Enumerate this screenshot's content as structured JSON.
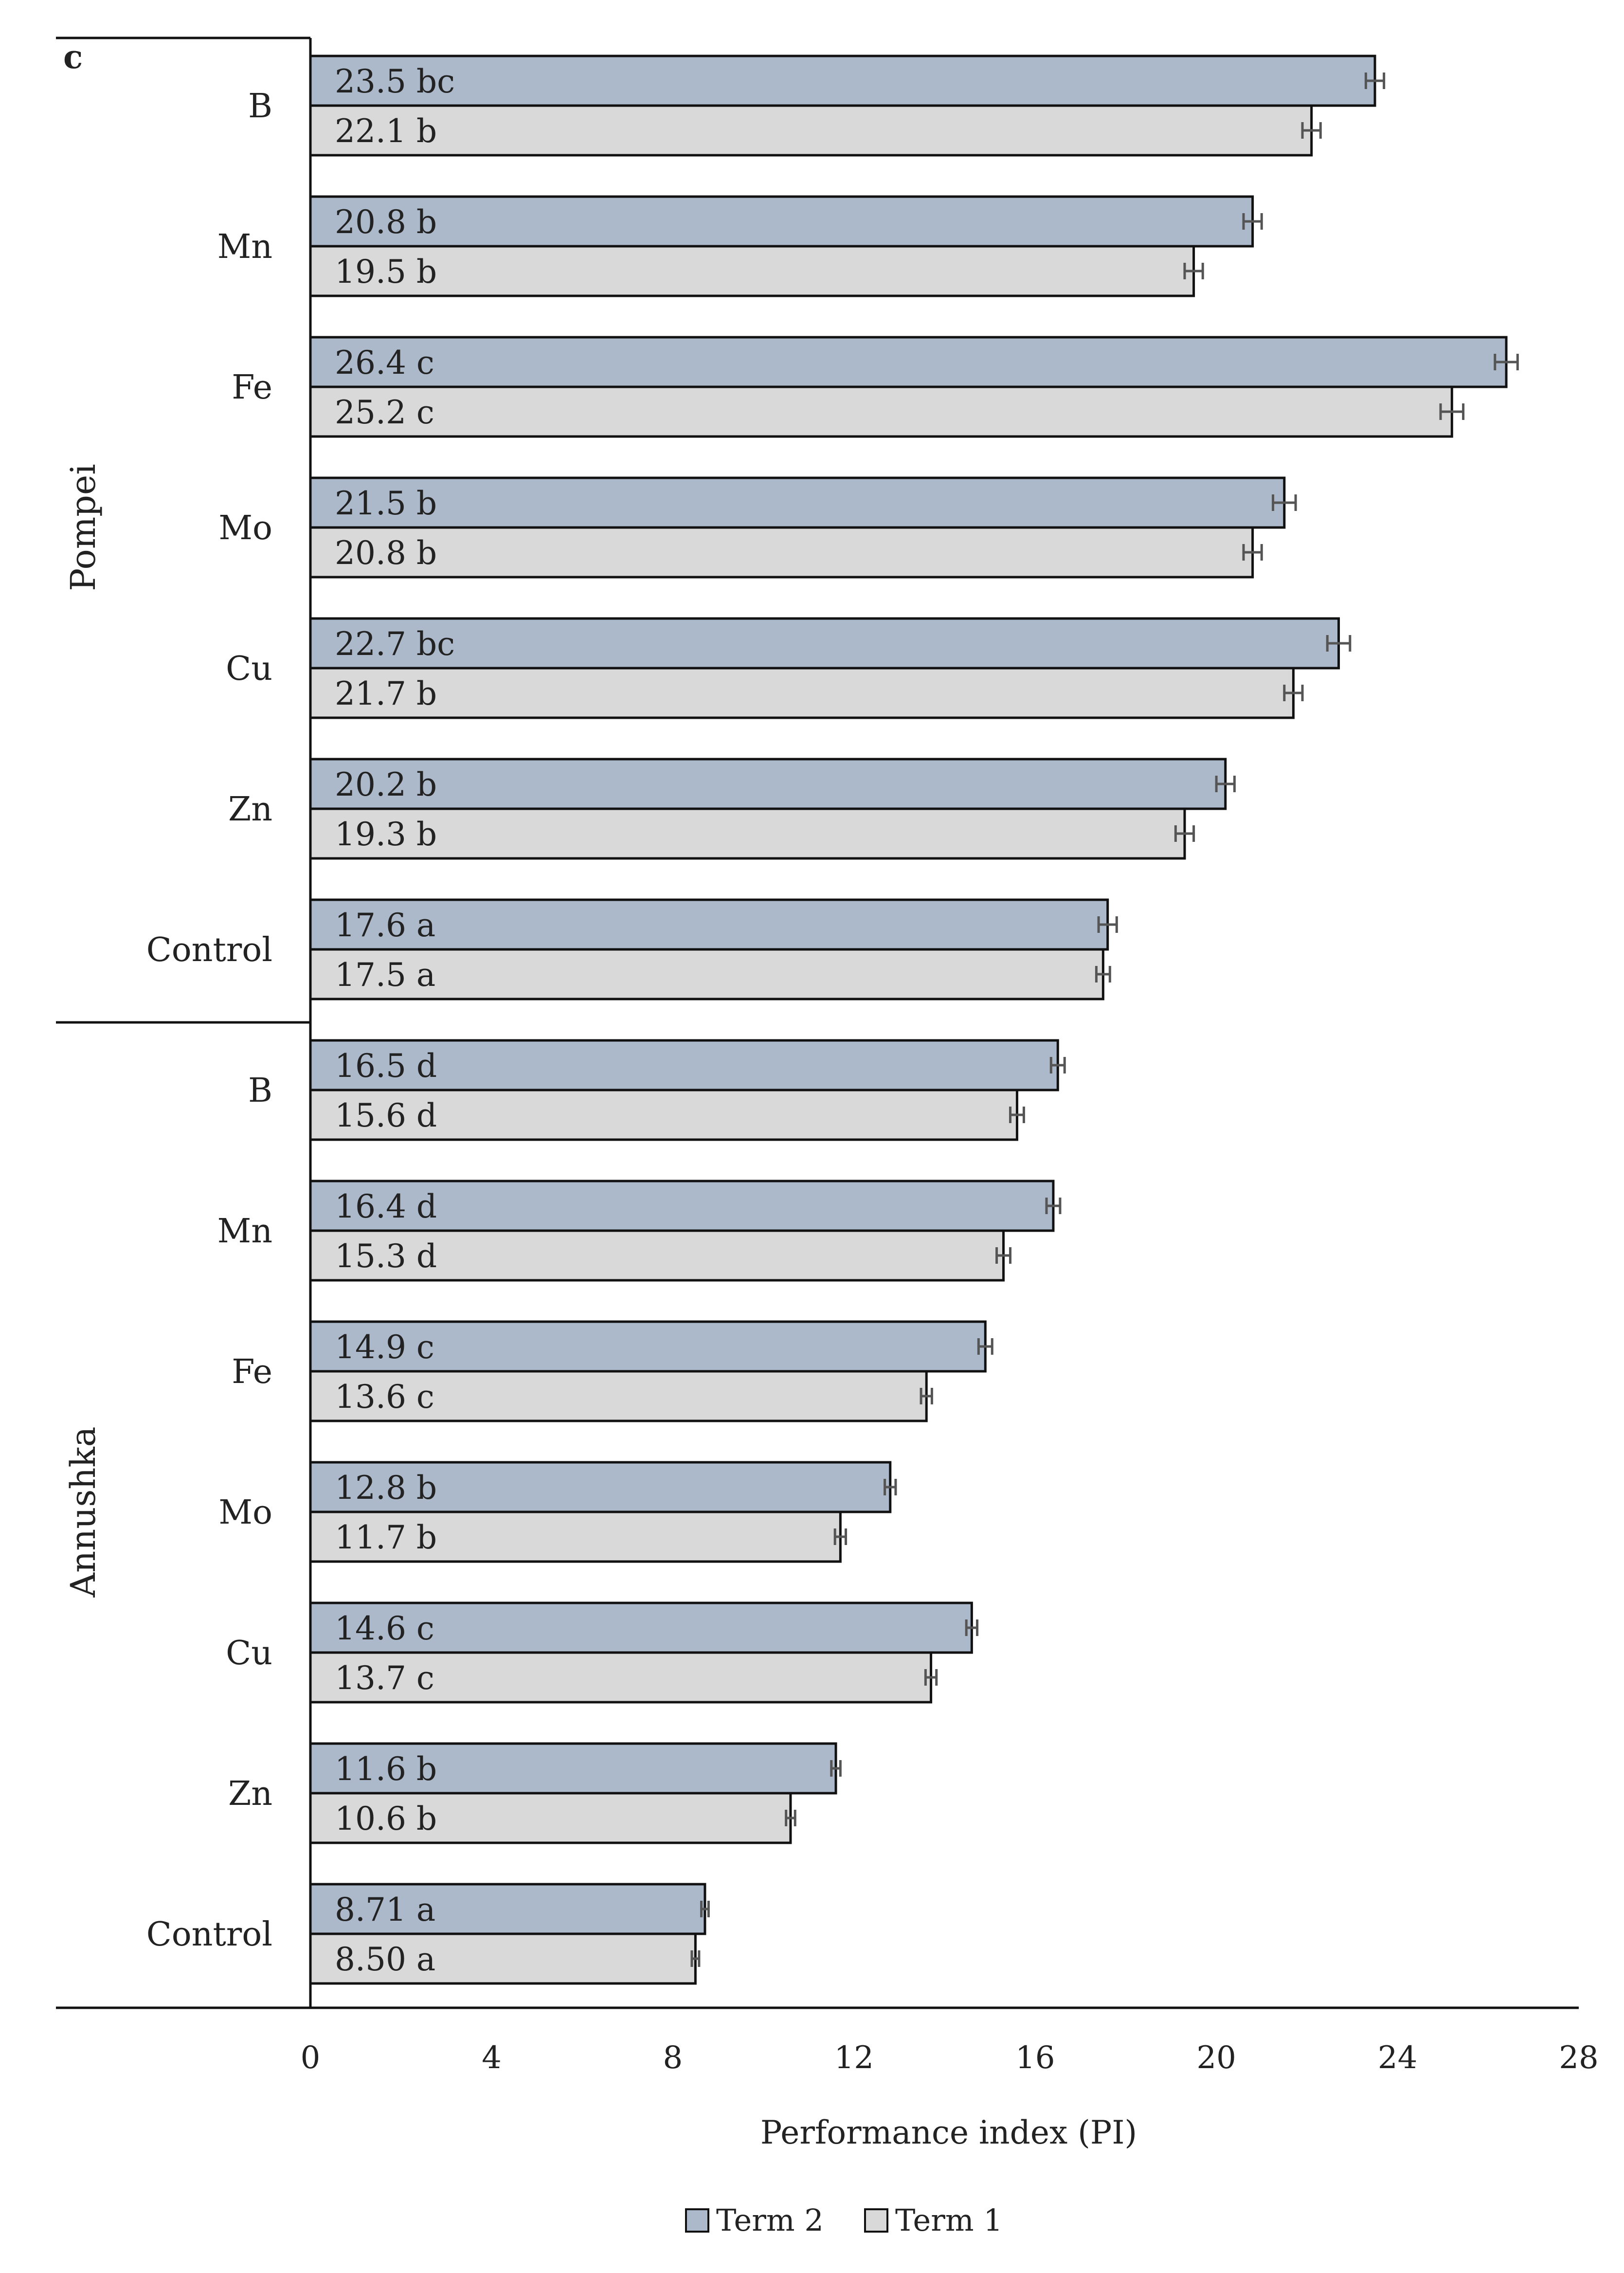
{
  "chart_data": {
    "type": "bar",
    "orientation": "horizontal",
    "panel_label": "c",
    "xlabel": "Performance index (PI)",
    "xlim": [
      0,
      28
    ],
    "xticks": [
      0,
      4,
      8,
      12,
      16,
      20,
      24,
      28
    ],
    "legend": [
      "Term 2",
      "Term 1"
    ],
    "colors": {
      "term2": "#acb9ca",
      "term1": "#d9d9d9",
      "edge": "#111111",
      "error": "#555555"
    },
    "groups": [
      {
        "name": "Pompei",
        "rows": [
          {
            "label": "B",
            "term2": 23.5,
            "term2_letter": "bc",
            "term2_text": "23.5 bc",
            "term1": 22.1,
            "term1_letter": "b",
            "term1_text": "22.1 b",
            "term2_err": 0.2,
            "term1_err": 0.2
          },
          {
            "label": "Mn",
            "term2": 20.8,
            "term2_letter": "b",
            "term2_text": "20.8 b",
            "term1": 19.5,
            "term1_letter": "b",
            "term1_text": "19.5 b",
            "term2_err": 0.2,
            "term1_err": 0.2
          },
          {
            "label": "Fe",
            "term2": 26.4,
            "term2_letter": "c",
            "term2_text": "26.4 c",
            "term1": 25.2,
            "term1_letter": "c",
            "term1_text": "25.2 c",
            "term2_err": 0.25,
            "term1_err": 0.25
          },
          {
            "label": "Mo",
            "term2": 21.5,
            "term2_letter": "b",
            "term2_text": "21.5 b",
            "term1": 20.8,
            "term1_letter": "b",
            "term1_text": "20.8 b",
            "term2_err": 0.25,
            "term1_err": 0.2
          },
          {
            "label": "Cu",
            "term2": 22.7,
            "term2_letter": "bc",
            "term2_text": "22.7 bc",
            "term1": 21.7,
            "term1_letter": "b",
            "term1_text": "21.7 b",
            "term2_err": 0.25,
            "term1_err": 0.2
          },
          {
            "label": "Zn",
            "term2": 20.2,
            "term2_letter": "b",
            "term2_text": "20.2 b",
            "term1": 19.3,
            "term1_letter": "b",
            "term1_text": "19.3 b",
            "term2_err": 0.2,
            "term1_err": 0.2
          },
          {
            "label": "Control",
            "term2": 17.6,
            "term2_letter": "a",
            "term2_text": "17.6 a",
            "term1": 17.5,
            "term1_letter": "a",
            "term1_text": "17.5 a",
            "term2_err": 0.2,
            "term1_err": 0.15
          }
        ]
      },
      {
        "name": "Annushka",
        "rows": [
          {
            "label": "B",
            "term2": 16.5,
            "term2_letter": "d",
            "term2_text": "16.5 d",
            "term1": 15.6,
            "term1_letter": "d",
            "term1_text": "15.6 d",
            "term2_err": 0.15,
            "term1_err": 0.15
          },
          {
            "label": "Mn",
            "term2": 16.4,
            "term2_letter": "d",
            "term2_text": "16.4 d",
            "term1": 15.3,
            "term1_letter": "d",
            "term1_text": "15.3 d",
            "term2_err": 0.15,
            "term1_err": 0.15
          },
          {
            "label": "Fe",
            "term2": 14.9,
            "term2_letter": "c",
            "term2_text": "14.9 c",
            "term1": 13.6,
            "term1_letter": "c",
            "term1_text": "13.6 c",
            "term2_err": 0.15,
            "term1_err": 0.12
          },
          {
            "label": "Mo",
            "term2": 12.8,
            "term2_letter": "b",
            "term2_text": "12.8 b",
            "term1": 11.7,
            "term1_letter": "b",
            "term1_text": "11.7 b",
            "term2_err": 0.12,
            "term1_err": 0.12
          },
          {
            "label": "Cu",
            "term2": 14.6,
            "term2_letter": "c",
            "term2_text": "14.6 c",
            "term1": 13.7,
            "term1_letter": "c",
            "term1_text": "13.7 c",
            "term2_err": 0.12,
            "term1_err": 0.12
          },
          {
            "label": "Zn",
            "term2": 11.6,
            "term2_letter": "b",
            "term2_text": "11.6 b",
            "term1": 10.6,
            "term1_letter": "b",
            "term1_text": "10.6 b",
            "term2_err": 0.1,
            "term1_err": 0.1
          },
          {
            "label": "Control",
            "term2": 8.71,
            "term2_letter": "a",
            "term2_text": "8.71 a",
            "term1": 8.5,
            "term1_letter": "a",
            "term1_text": "8.50 a",
            "term2_err": 0.08,
            "term1_err": 0.08
          }
        ]
      }
    ]
  }
}
